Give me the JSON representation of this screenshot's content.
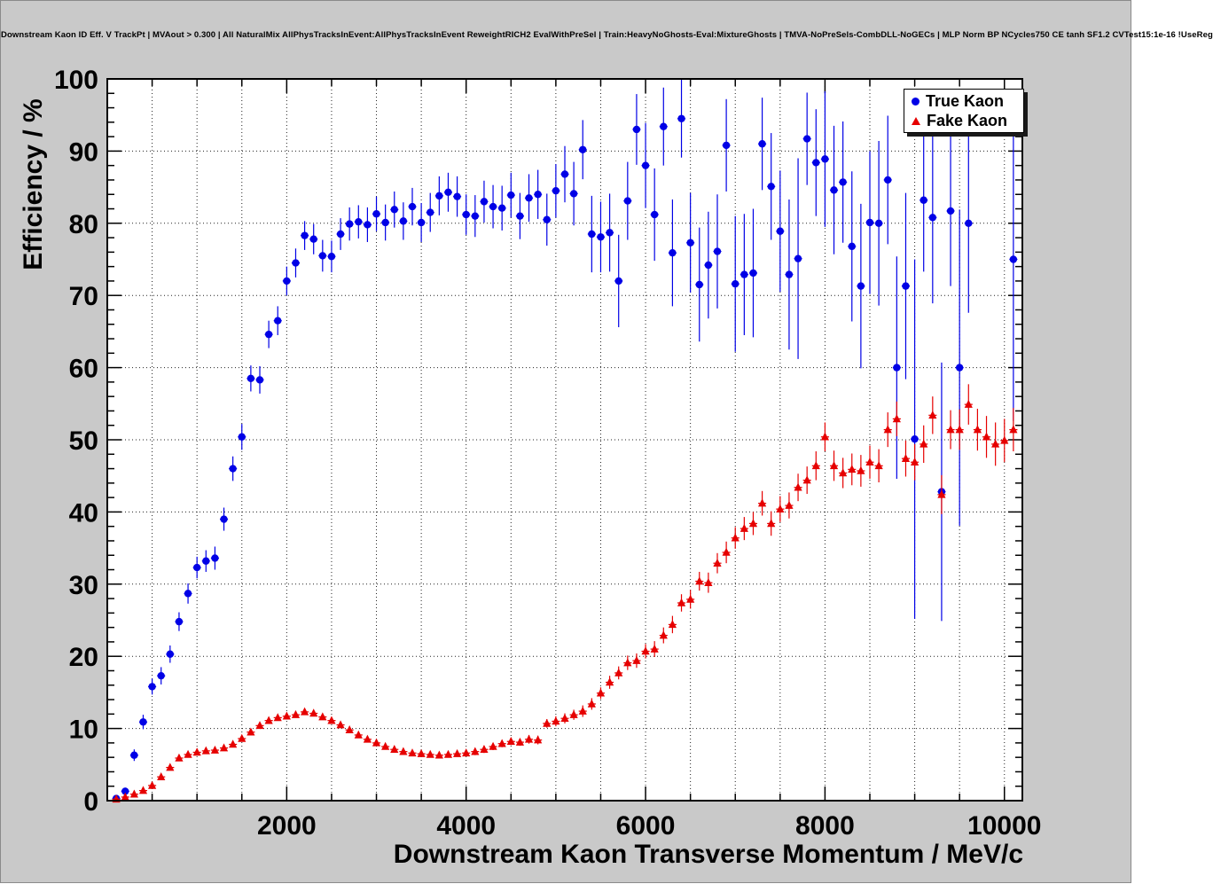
{
  "chart_data": {
    "type": "scatter",
    "title": "Downstream Kaon ID Eff. V TrackPt | MVAout > 0.300 | All NaturalMix AllPhysTracksInEvent:AllPhysTracksInEvent ReweightRICH2 EvalWithPreSel | Train:HeavyNoGhosts-Eval:MixtureGhosts | TMVA-NoPreSels-CombDLL-NoGECs | MLP Norm BP NCycles750 CE tanh SF1.2 CVTest15:1e-16 !UseReg",
    "xlabel": "Downstream Kaon Transverse Momentum / MeV/c",
    "ylabel": "Efficiency / %",
    "xlim": [
      0,
      10200
    ],
    "ylim": [
      0,
      100
    ],
    "grid": true,
    "legend_position": "top-right",
    "axes": {
      "x_major_ticks": [
        2000,
        4000,
        6000,
        8000,
        10000
      ],
      "x_minor_step": 500,
      "y_major_step": 10,
      "y_minor_step": 2
    },
    "colors": {
      "canvas_bg": "#c9c9c9",
      "plot_bg": "#ffffff",
      "frame": "#000000",
      "grid": "#222222",
      "true_kaon": "#0000e6",
      "fake_kaon": "#e60000"
    },
    "series": [
      {
        "name": "True Kaon",
        "marker": "circle",
        "color": "#0000e6",
        "x_half_width": 45,
        "points": [
          [
            100,
            0.3,
            0.3
          ],
          [
            200,
            1.3,
            0.5
          ],
          [
            300,
            6.3,
            0.8
          ],
          [
            400,
            10.9,
            1.0
          ],
          [
            500,
            15.8,
            1.1
          ],
          [
            600,
            17.3,
            1.2
          ],
          [
            700,
            20.3,
            1.2
          ],
          [
            800,
            24.8,
            1.3
          ],
          [
            900,
            28.7,
            1.4
          ],
          [
            1000,
            32.3,
            1.5
          ],
          [
            1100,
            33.2,
            1.5
          ],
          [
            1200,
            33.6,
            1.6
          ],
          [
            1300,
            39.0,
            1.6
          ],
          [
            1400,
            46.0,
            1.7
          ],
          [
            1500,
            50.4,
            1.8
          ],
          [
            1600,
            58.5,
            1.8
          ],
          [
            1700,
            58.3,
            1.9
          ],
          [
            1800,
            64.6,
            1.9
          ],
          [
            1900,
            66.5,
            2.0
          ],
          [
            2000,
            72.0,
            2.0
          ],
          [
            2100,
            74.5,
            2.0
          ],
          [
            2200,
            78.3,
            2.0
          ],
          [
            2300,
            77.8,
            2.1
          ],
          [
            2400,
            75.5,
            2.2
          ],
          [
            2500,
            75.4,
            2.2
          ],
          [
            2600,
            78.5,
            2.2
          ],
          [
            2700,
            79.9,
            2.3
          ],
          [
            2800,
            80.2,
            2.3
          ],
          [
            2900,
            79.8,
            2.4
          ],
          [
            3000,
            81.3,
            2.4
          ],
          [
            3100,
            80.1,
            2.5
          ],
          [
            3200,
            81.9,
            2.5
          ],
          [
            3300,
            80.3,
            2.6
          ],
          [
            3400,
            82.3,
            2.6
          ],
          [
            3500,
            80.1,
            2.7
          ],
          [
            3600,
            81.5,
            2.7
          ],
          [
            3700,
            83.8,
            2.7
          ],
          [
            3800,
            84.3,
            2.7
          ],
          [
            3900,
            83.7,
            2.8
          ],
          [
            4000,
            81.2,
            2.8
          ],
          [
            4100,
            81.0,
            2.9
          ],
          [
            4200,
            83.0,
            2.9
          ],
          [
            4300,
            82.3,
            3.0
          ],
          [
            4400,
            82.1,
            3.1
          ],
          [
            4500,
            83.9,
            3.1
          ],
          [
            4600,
            81.0,
            3.2
          ],
          [
            4700,
            83.5,
            3.3
          ],
          [
            4800,
            84.0,
            3.4
          ],
          [
            4900,
            80.5,
            3.6
          ],
          [
            5000,
            84.5,
            3.7
          ],
          [
            5100,
            86.8,
            3.9
          ],
          [
            5200,
            84.1,
            4.4
          ],
          [
            5300,
            90.2,
            4.1
          ],
          [
            5400,
            78.5,
            5.3
          ],
          [
            5500,
            78.1,
            4.9
          ],
          [
            5600,
            78.7,
            5.4
          ],
          [
            5700,
            72.0,
            6.4
          ],
          [
            5800,
            83.1,
            5.4
          ],
          [
            5900,
            93.0,
            4.9
          ],
          [
            6000,
            88.0,
            5.9
          ],
          [
            6100,
            81.2,
            6.4
          ],
          [
            6200,
            93.4,
            5.4
          ],
          [
            6300,
            75.9,
            7.4
          ],
          [
            6400,
            94.5,
            5.4
          ],
          [
            6500,
            77.3,
            6.9
          ],
          [
            6600,
            71.5,
            7.9
          ],
          [
            6700,
            74.2,
            7.4
          ],
          [
            6800,
            76.1,
            7.9
          ],
          [
            6900,
            90.8,
            6.4
          ],
          [
            7000,
            71.6,
            9.4
          ],
          [
            7100,
            72.9,
            8.4
          ],
          [
            7200,
            73.1,
            8.9
          ],
          [
            7300,
            91.0,
            6.4
          ],
          [
            7400,
            85.1,
            7.4
          ],
          [
            7500,
            78.9,
            8.4
          ],
          [
            7600,
            72.9,
            10.4
          ],
          [
            7700,
            75.1,
            13.9
          ],
          [
            7800,
            91.7,
            6.4
          ],
          [
            7900,
            88.4,
            7.4
          ],
          [
            8000,
            88.9,
            9.4
          ],
          [
            8100,
            84.6,
            8.9
          ],
          [
            8200,
            85.7,
            8.4
          ],
          [
            8300,
            76.8,
            10.4
          ],
          [
            8400,
            71.3,
            11.4
          ],
          [
            8500,
            80.1,
            9.9
          ],
          [
            8600,
            80.0,
            11.4
          ],
          [
            8700,
            86.0,
            8.9
          ],
          [
            8800,
            60.0,
            15.4
          ],
          [
            8900,
            71.3,
            12.9
          ],
          [
            9000,
            50.1,
            24.9
          ],
          [
            9100,
            83.2,
            9.9
          ],
          [
            9200,
            80.8,
            11.9
          ],
          [
            9300,
            42.8,
            17.9
          ],
          [
            9400,
            81.7,
            10.4
          ],
          [
            9500,
            60.0,
            21.9
          ],
          [
            9600,
            80.0,
            12.4
          ],
          [
            10100,
            75.0,
            22.4
          ]
        ]
      },
      {
        "name": "Fake Kaon",
        "marker": "triangle",
        "color": "#e60000",
        "x_half_width": 45,
        "points": [
          [
            100,
            0.2,
            0.1
          ],
          [
            200,
            0.5,
            0.1
          ],
          [
            300,
            0.9,
            0.2
          ],
          [
            400,
            1.4,
            0.2
          ],
          [
            500,
            2.1,
            0.2
          ],
          [
            600,
            3.3,
            0.3
          ],
          [
            700,
            4.6,
            0.3
          ],
          [
            800,
            5.9,
            0.3
          ],
          [
            900,
            6.4,
            0.3
          ],
          [
            1000,
            6.7,
            0.3
          ],
          [
            1100,
            6.9,
            0.3
          ],
          [
            1200,
            7.0,
            0.3
          ],
          [
            1300,
            7.3,
            0.3
          ],
          [
            1400,
            7.8,
            0.3
          ],
          [
            1500,
            8.6,
            0.3
          ],
          [
            1600,
            9.5,
            0.3
          ],
          [
            1700,
            10.4,
            0.3
          ],
          [
            1800,
            11.1,
            0.4
          ],
          [
            1900,
            11.5,
            0.4
          ],
          [
            2000,
            11.7,
            0.4
          ],
          [
            2100,
            11.9,
            0.4
          ],
          [
            2200,
            12.3,
            0.4
          ],
          [
            2300,
            12.1,
            0.4
          ],
          [
            2400,
            11.6,
            0.4
          ],
          [
            2500,
            11.1,
            0.4
          ],
          [
            2600,
            10.5,
            0.4
          ],
          [
            2700,
            9.8,
            0.4
          ],
          [
            2800,
            9.1,
            0.4
          ],
          [
            2900,
            8.5,
            0.4
          ],
          [
            3000,
            8.0,
            0.4
          ],
          [
            3100,
            7.5,
            0.4
          ],
          [
            3200,
            7.1,
            0.4
          ],
          [
            3300,
            6.8,
            0.4
          ],
          [
            3400,
            6.6,
            0.4
          ],
          [
            3500,
            6.5,
            0.4
          ],
          [
            3600,
            6.4,
            0.4
          ],
          [
            3700,
            6.3,
            0.4
          ],
          [
            3800,
            6.4,
            0.4
          ],
          [
            3900,
            6.5,
            0.4
          ],
          [
            4000,
            6.6,
            0.4
          ],
          [
            4100,
            6.8,
            0.5
          ],
          [
            4200,
            7.1,
            0.5
          ],
          [
            4300,
            7.5,
            0.5
          ],
          [
            4400,
            7.9,
            0.5
          ],
          [
            4500,
            8.2,
            0.5
          ],
          [
            4600,
            8.1,
            0.5
          ],
          [
            4700,
            8.5,
            0.6
          ],
          [
            4800,
            8.4,
            0.6
          ],
          [
            4900,
            10.7,
            0.6
          ],
          [
            5000,
            11.0,
            0.7
          ],
          [
            5100,
            11.4,
            0.7
          ],
          [
            5200,
            11.9,
            0.7
          ],
          [
            5300,
            12.4,
            0.8
          ],
          [
            5400,
            13.4,
            0.8
          ],
          [
            5500,
            14.9,
            0.8
          ],
          [
            5600,
            16.4,
            0.9
          ],
          [
            5700,
            17.7,
            0.9
          ],
          [
            5800,
            19.1,
            1.0
          ],
          [
            5900,
            19.4,
            1.0
          ],
          [
            6000,
            20.7,
            1.0
          ],
          [
            6100,
            21.0,
            1.1
          ],
          [
            6200,
            22.9,
            1.1
          ],
          [
            6300,
            24.4,
            1.2
          ],
          [
            6400,
            27.4,
            1.2
          ],
          [
            6500,
            27.9,
            1.3
          ],
          [
            6600,
            30.4,
            1.3
          ],
          [
            6700,
            30.2,
            1.4
          ],
          [
            6800,
            32.9,
            1.4
          ],
          [
            6900,
            34.4,
            1.5
          ],
          [
            7000,
            36.4,
            1.5
          ],
          [
            7100,
            37.7,
            1.6
          ],
          [
            7200,
            38.4,
            1.6
          ],
          [
            7300,
            41.2,
            1.7
          ],
          [
            7400,
            38.4,
            1.7
          ],
          [
            7500,
            40.4,
            1.8
          ],
          [
            7600,
            40.9,
            1.8
          ],
          [
            7700,
            43.4,
            1.9
          ],
          [
            7800,
            44.4,
            1.9
          ],
          [
            7900,
            46.4,
            2.0
          ],
          [
            8000,
            50.4,
            2.0
          ],
          [
            8100,
            46.4,
            2.1
          ],
          [
            8200,
            45.4,
            2.1
          ],
          [
            8300,
            45.9,
            2.2
          ],
          [
            8400,
            45.7,
            2.2
          ],
          [
            8500,
            46.9,
            2.3
          ],
          [
            8600,
            46.4,
            2.3
          ],
          [
            8700,
            51.4,
            2.4
          ],
          [
            8800,
            52.9,
            2.4
          ],
          [
            8900,
            47.4,
            2.5
          ],
          [
            9000,
            46.9,
            2.5
          ],
          [
            9100,
            49.4,
            2.6
          ],
          [
            9200,
            53.4,
            2.6
          ],
          [
            9300,
            42.4,
            2.7
          ],
          [
            9400,
            51.4,
            2.7
          ],
          [
            9500,
            51.4,
            2.8
          ],
          [
            9600,
            54.9,
            2.8
          ],
          [
            9700,
            51.4,
            2.9
          ],
          [
            9800,
            50.4,
            2.9
          ],
          [
            9900,
            49.4,
            3.0
          ],
          [
            10000,
            49.9,
            3.0
          ],
          [
            10100,
            51.4,
            3.0
          ]
        ]
      }
    ]
  }
}
